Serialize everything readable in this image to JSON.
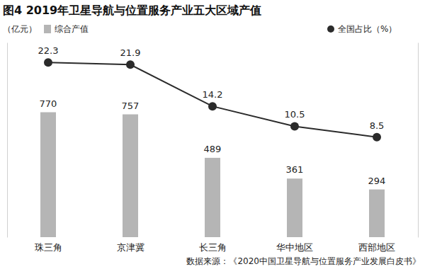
{
  "chart_data": {
    "type": "bar",
    "title": "图4 2019年卫星导航与位置服务产业五大区域产值",
    "ylabel": "（亿元）",
    "annotation": "数据来源：《2020中国卫星导航与位置服务产业发展白皮书》",
    "categories": [
      "珠三角",
      "京津冀",
      "长三角",
      "华中地区",
      "西部地区"
    ],
    "series": [
      {
        "name": "综合产值",
        "type": "bar",
        "color": "#b5b5b5",
        "values": [
          770,
          757,
          489,
          361,
          294
        ]
      },
      {
        "name": "全国占比（%）",
        "type": "line",
        "color": "#2b2b2b",
        "marker": "circle",
        "axis": "y2",
        "values": [
          22.3,
          21.9,
          14.2,
          10.5,
          8.5
        ]
      }
    ],
    "ylim": [
      0,
      1200
    ],
    "yticks": [],
    "y2lim": [
      -10,
      26
    ],
    "y2ticks": [],
    "data_labels": true,
    "tick_labels": "x",
    "grid": false
  }
}
